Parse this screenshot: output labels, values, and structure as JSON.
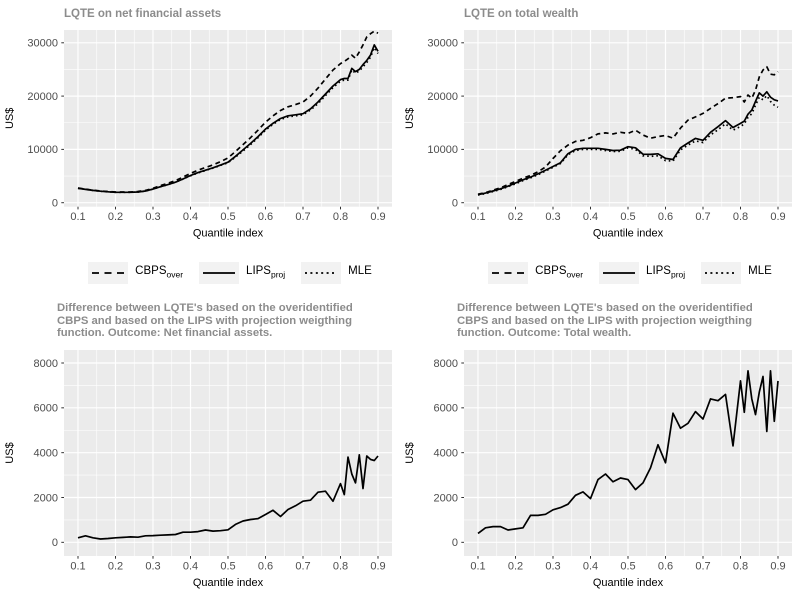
{
  "styles": {
    "panel_bg": "#ebebeb",
    "grid_color": "#ffffff",
    "line_color": "#000000",
    "title_color": "#8c8c8c",
    "axis_text_color": "#4d4d4d",
    "axis_title_color": "#000000",
    "legend_key_bg": "#f2f2f2",
    "tick_color": "#333333"
  },
  "legend": {
    "items": [
      {
        "label": "CBPS",
        "sub": "over",
        "line_style": "dashed"
      },
      {
        "label": "LIPS",
        "sub": "proj",
        "line_style": "solid"
      },
      {
        "label": "MLE",
        "sub": "",
        "line_style": "dotted"
      }
    ]
  },
  "chart_data": [
    {
      "id": "lqte-net-financial-assets",
      "type": "line",
      "title": "LQTE on net financial assets",
      "xlabel": "Quantile index",
      "ylabel": "US$",
      "legend_position": "bottom",
      "xlim": [
        0.0627,
        0.9373
      ],
      "ylim": [
        -750,
        32400
      ],
      "xticks": [
        0.1,
        0.2,
        0.3,
        0.4,
        0.5,
        0.6,
        0.7,
        0.8,
        0.9
      ],
      "xtick_labels": [
        "0.1",
        "0.2",
        "0.3",
        "0.4",
        "0.5",
        "0.6",
        "0.7",
        "0.8",
        "0.9"
      ],
      "yticks": [
        0,
        10000,
        20000,
        30000
      ],
      "ytick_labels": [
        "0",
        "10000",
        "20000",
        "30000"
      ],
      "x_minor": [
        0.15,
        0.25,
        0.35,
        0.45,
        0.55,
        0.65,
        0.75,
        0.85
      ],
      "y_minor": [
        5000,
        15000,
        25000
      ],
      "x": [
        0.1,
        0.12,
        0.14,
        0.16,
        0.18,
        0.2,
        0.22,
        0.24,
        0.26,
        0.28,
        0.3,
        0.32,
        0.34,
        0.36,
        0.38,
        0.4,
        0.42,
        0.44,
        0.46,
        0.48,
        0.5,
        0.52,
        0.54,
        0.56,
        0.58,
        0.6,
        0.62,
        0.64,
        0.66,
        0.68,
        0.7,
        0.72,
        0.74,
        0.76,
        0.78,
        0.8,
        0.81,
        0.82,
        0.83,
        0.84,
        0.85,
        0.86,
        0.87,
        0.88,
        0.89,
        0.9
      ],
      "series": [
        {
          "name": "CBPS_over",
          "line_style": "dashed",
          "values": [
            2750,
            2550,
            2350,
            2200,
            2100,
            2000,
            2000,
            2000,
            2100,
            2300,
            2700,
            3200,
            3650,
            4150,
            4800,
            5500,
            6100,
            6600,
            7100,
            7700,
            8400,
            9600,
            10900,
            12200,
            13600,
            15100,
            16300,
            17300,
            18000,
            18400,
            18900,
            20000,
            21500,
            23200,
            24900,
            26100,
            26500,
            27000,
            27700,
            27100,
            28300,
            29600,
            31100,
            31700,
            32200,
            31800
          ]
        },
        {
          "name": "LIPS_proj",
          "line_style": "solid",
          "values": [
            2700,
            2500,
            2300,
            2150,
            2050,
            1950,
            1950,
            1950,
            2000,
            2200,
            2550,
            3000,
            3400,
            3850,
            4450,
            5100,
            5650,
            6100,
            6550,
            7050,
            7600,
            8700,
            9900,
            11100,
            12400,
            13800,
            14900,
            15800,
            16300,
            16500,
            16700,
            17600,
            18900,
            20400,
            21900,
            23100,
            23300,
            23300,
            25200,
            24600,
            25000,
            25900,
            26700,
            27700,
            29600,
            28400
          ]
        },
        {
          "name": "MLE",
          "line_style": "dotted",
          "values": [
            2700,
            2500,
            2300,
            2150,
            2050,
            1950,
            1950,
            1950,
            2000,
            2200,
            2550,
            3000,
            3400,
            3850,
            4450,
            5050,
            5600,
            6050,
            6500,
            7000,
            7500,
            8550,
            9700,
            10900,
            12200,
            13600,
            14700,
            15600,
            16100,
            16300,
            16500,
            17400,
            18600,
            20100,
            21600,
            22800,
            23000,
            23000,
            24900,
            24300,
            24700,
            25500,
            26300,
            27300,
            29100,
            28000
          ]
        }
      ]
    },
    {
      "id": "lqte-total-wealth",
      "type": "line",
      "title": "LQTE on total wealth",
      "xlabel": "Quantile index",
      "ylabel": "US$",
      "legend_position": "bottom",
      "xlim": [
        0.0627,
        0.9373
      ],
      "ylim": [
        -750,
        32400
      ],
      "xticks": [
        0.1,
        0.2,
        0.3,
        0.4,
        0.5,
        0.6,
        0.7,
        0.8,
        0.9
      ],
      "xtick_labels": [
        "0.1",
        "0.2",
        "0.3",
        "0.4",
        "0.5",
        "0.6",
        "0.7",
        "0.8",
        "0.9"
      ],
      "yticks": [
        0,
        10000,
        20000,
        30000
      ],
      "ytick_labels": [
        "0",
        "10000",
        "20000",
        "30000"
      ],
      "x_minor": [
        0.15,
        0.25,
        0.35,
        0.45,
        0.55,
        0.65,
        0.75,
        0.85
      ],
      "y_minor": [
        5000,
        15000,
        25000
      ],
      "x": [
        0.1,
        0.12,
        0.14,
        0.16,
        0.18,
        0.2,
        0.22,
        0.24,
        0.26,
        0.28,
        0.3,
        0.32,
        0.34,
        0.36,
        0.38,
        0.4,
        0.42,
        0.44,
        0.46,
        0.48,
        0.5,
        0.52,
        0.54,
        0.56,
        0.58,
        0.6,
        0.62,
        0.64,
        0.66,
        0.68,
        0.7,
        0.72,
        0.74,
        0.76,
        0.78,
        0.8,
        0.81,
        0.82,
        0.83,
        0.84,
        0.85,
        0.86,
        0.87,
        0.88,
        0.89,
        0.9
      ],
      "series": [
        {
          "name": "CBPS_over",
          "line_style": "dashed",
          "values": [
            1600,
            1900,
            2350,
            2800,
            3400,
            4000,
            4600,
            5100,
            5800,
            6700,
            8300,
            9750,
            10800,
            11500,
            11700,
            12200,
            12900,
            13100,
            12900,
            13200,
            13000,
            13600,
            12700,
            12100,
            12400,
            12600,
            12100,
            14000,
            15500,
            16100,
            16750,
            17700,
            18600,
            19600,
            19700,
            19900,
            18900,
            20200,
            19600,
            21100,
            23600,
            24900,
            25500,
            24100,
            24000,
            24600
          ]
        },
        {
          "name": "LIPS_proj",
          "line_style": "solid",
          "values": [
            1500,
            1800,
            2200,
            2600,
            3100,
            3700,
            4300,
            4800,
            5400,
            6100,
            6800,
            7500,
            9200,
            10000,
            10200,
            10200,
            10200,
            10000,
            9800,
            9850,
            10500,
            10300,
            9100,
            9060,
            9180,
            8310,
            8100,
            10300,
            11200,
            12060,
            11700,
            13200,
            14250,
            15400,
            14100,
            14880,
            15300,
            16600,
            17380,
            19000,
            20600,
            20000,
            20810,
            19800,
            19300,
            19100
          ]
        },
        {
          "name": "MLE",
          "line_style": "dotted",
          "values": [
            1450,
            1700,
            2100,
            2500,
            3000,
            3550,
            4150,
            4650,
            5250,
            5950,
            6650,
            7350,
            9000,
            9800,
            10000,
            10000,
            10000,
            9800,
            9600,
            9650,
            10300,
            10000,
            8800,
            8700,
            8800,
            7900,
            7800,
            9900,
            10800,
            11600,
            11300,
            12700,
            13700,
            14800,
            13600,
            14300,
            14800,
            16000,
            16700,
            18300,
            19800,
            19300,
            20100,
            19000,
            18300,
            17900
          ]
        }
      ]
    },
    {
      "id": "difference-net-financial-assets",
      "type": "line",
      "title_lines": [
        "Difference between LQTE's based on the overidentified",
        "CBPS and based on the LIPS with projection weigthing",
        "function. Outcome: Net financial assets."
      ],
      "xlabel": "Quantile index",
      "ylabel": "US$",
      "xlim": [
        0.0627,
        0.9373
      ],
      "ylim": [
        -610,
        8580
      ],
      "xticks": [
        0.1,
        0.2,
        0.3,
        0.4,
        0.5,
        0.6,
        0.7,
        0.8,
        0.9
      ],
      "xtick_labels": [
        "0.1",
        "0.2",
        "0.3",
        "0.4",
        "0.5",
        "0.6",
        "0.7",
        "0.8",
        "0.9"
      ],
      "yticks": [
        0,
        2000,
        4000,
        6000,
        8000
      ],
      "ytick_labels": [
        "0",
        "2000",
        "4000",
        "6000",
        "8000"
      ],
      "x_minor": [
        0.15,
        0.25,
        0.35,
        0.45,
        0.55,
        0.65,
        0.75,
        0.85
      ],
      "y_minor": [
        1000,
        3000,
        5000,
        7000
      ],
      "x": [
        0.1,
        0.12,
        0.14,
        0.16,
        0.18,
        0.2,
        0.22,
        0.24,
        0.26,
        0.28,
        0.3,
        0.32,
        0.34,
        0.36,
        0.38,
        0.4,
        0.42,
        0.44,
        0.46,
        0.48,
        0.5,
        0.52,
        0.54,
        0.56,
        0.58,
        0.6,
        0.62,
        0.64,
        0.66,
        0.68,
        0.7,
        0.72,
        0.74,
        0.76,
        0.78,
        0.8,
        0.81,
        0.82,
        0.83,
        0.84,
        0.85,
        0.86,
        0.87,
        0.88,
        0.89,
        0.9
      ],
      "series": [
        {
          "name": "CBPS_minus_LIPS",
          "line_style": "solid",
          "values": [
            200,
            290,
            200,
            150,
            170,
            200,
            220,
            240,
            230,
            290,
            300,
            320,
            330,
            350,
            450,
            450,
            480,
            550,
            500,
            520,
            560,
            800,
            950,
            1020,
            1060,
            1240,
            1430,
            1150,
            1465,
            1630,
            1835,
            1880,
            2235,
            2280,
            1835,
            2620,
            2130,
            3800,
            3050,
            2650,
            3900,
            2400,
            3850,
            3700,
            3650,
            3850
          ]
        }
      ]
    },
    {
      "id": "difference-total-wealth",
      "type": "line",
      "title_lines": [
        "Difference between LQTE's based on the overidentified",
        "CBPS and based on the LIPS with projection weigthing",
        "function. Outcome: Total wealth."
      ],
      "xlabel": "Quantile index",
      "ylabel": "US$",
      "xlim": [
        0.0627,
        0.9373
      ],
      "ylim": [
        -610,
        8580
      ],
      "xticks": [
        0.1,
        0.2,
        0.3,
        0.4,
        0.5,
        0.6,
        0.7,
        0.8,
        0.9
      ],
      "xtick_labels": [
        "0.1",
        "0.2",
        "0.3",
        "0.4",
        "0.5",
        "0.6",
        "0.7",
        "0.8",
        "0.9"
      ],
      "yticks": [
        0,
        2000,
        4000,
        6000,
        8000
      ],
      "ytick_labels": [
        "0",
        "2000",
        "4000",
        "6000",
        "8000"
      ],
      "x_minor": [
        0.15,
        0.25,
        0.35,
        0.45,
        0.55,
        0.65,
        0.75,
        0.85
      ],
      "y_minor": [
        1000,
        3000,
        5000,
        7000
      ],
      "x": [
        0.1,
        0.12,
        0.14,
        0.16,
        0.18,
        0.2,
        0.22,
        0.24,
        0.26,
        0.28,
        0.3,
        0.32,
        0.34,
        0.36,
        0.38,
        0.4,
        0.42,
        0.44,
        0.46,
        0.48,
        0.5,
        0.52,
        0.54,
        0.56,
        0.58,
        0.6,
        0.62,
        0.64,
        0.66,
        0.68,
        0.7,
        0.72,
        0.74,
        0.76,
        0.78,
        0.8,
        0.81,
        0.82,
        0.83,
        0.84,
        0.85,
        0.86,
        0.87,
        0.88,
        0.89,
        0.9
      ],
      "series": [
        {
          "name": "CBPS_minus_LIPS",
          "line_style": "solid",
          "values": [
            400,
            650,
            700,
            700,
            550,
            600,
            650,
            1200,
            1200,
            1250,
            1450,
            1550,
            1700,
            2100,
            2250,
            1950,
            2800,
            3050,
            2700,
            2870,
            2800,
            2350,
            2650,
            3320,
            4350,
            3550,
            5760,
            5090,
            5310,
            5830,
            5500,
            6400,
            6320,
            6600,
            4300,
            7200,
            5800,
            7650,
            6400,
            5700,
            6700,
            7400,
            4950,
            7650,
            5400,
            7200
          ]
        }
      ]
    }
  ]
}
